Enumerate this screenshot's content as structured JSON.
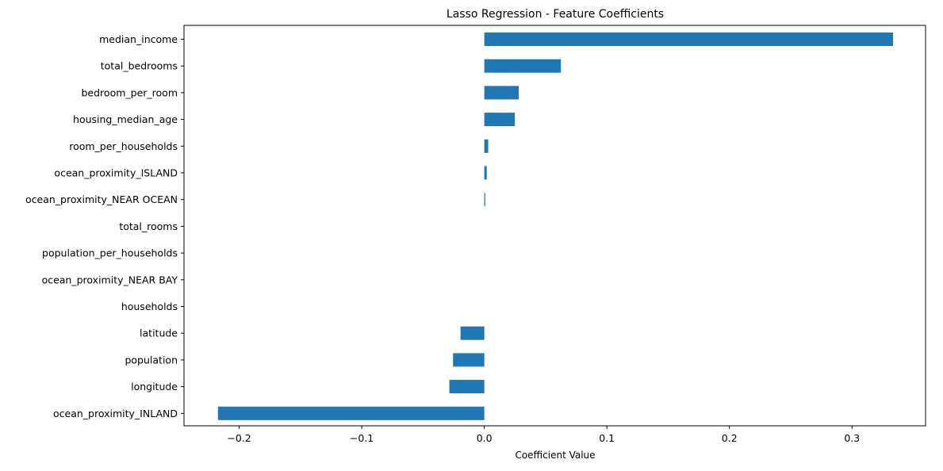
{
  "chart_data": {
    "type": "bar",
    "orientation": "horizontal",
    "title": "Lasso Regression - Feature Coefficients",
    "xlabel": "Coefficient Value",
    "ylabel": "",
    "xlim": [
      -0.245,
      0.36
    ],
    "xticks": [
      -0.2,
      -0.1,
      0.0,
      0.1,
      0.2,
      0.3
    ],
    "xtick_labels": [
      "−0.2",
      "−0.1",
      "0.0",
      "0.1",
      "0.2",
      "0.3"
    ],
    "grid": false,
    "legend": "none",
    "bar_color": "#1f77b4",
    "categories": [
      "median_income",
      "total_bedrooms",
      "bedroom_per_room",
      "housing_median_age",
      "room_per_households",
      "ocean_proximity_ISLAND",
      "ocean_proximity_NEAR OCEAN",
      "total_rooms",
      "population_per_households",
      "ocean_proximity_NEAR BAY",
      "households",
      "latitude",
      "population",
      "longitude",
      "ocean_proximity_INLAND"
    ],
    "values": [
      0.3335,
      0.0625,
      0.0281,
      0.0249,
      0.0032,
      0.002,
      0.0008,
      0.0,
      0.0,
      0.0,
      0.0,
      -0.0194,
      -0.0255,
      -0.0285,
      -0.2173
    ]
  }
}
